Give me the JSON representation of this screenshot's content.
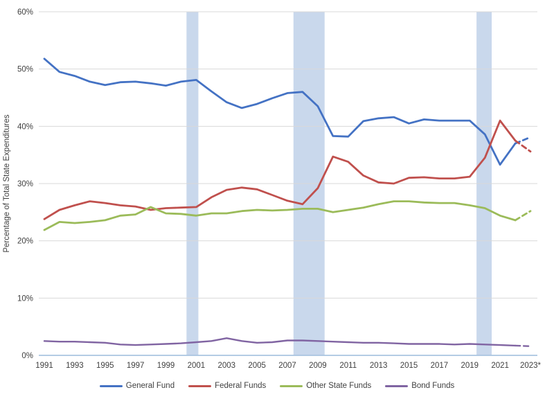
{
  "chart_data": {
    "type": "line",
    "title": "",
    "ylabel": "Percentage of Total State Expenditures",
    "xlabel": "",
    "ylim": [
      0,
      60
    ],
    "ytick_step": 10,
    "ytick_labels": [
      "0%",
      "10%",
      "20%",
      "30%",
      "40%",
      "50%",
      "60%"
    ],
    "x": [
      1991,
      1992,
      1993,
      1994,
      1995,
      1996,
      1997,
      1998,
      1999,
      2000,
      2001,
      2002,
      2003,
      2004,
      2005,
      2006,
      2007,
      2008,
      2009,
      2010,
      2011,
      2012,
      2013,
      2014,
      2015,
      2016,
      2017,
      2018,
      2019,
      2020,
      2021,
      2022,
      2023
    ],
    "xtick_labels": [
      "1991",
      "1993",
      "1995",
      "1997",
      "1999",
      "2001",
      "2003",
      "2005",
      "2007",
      "2009",
      "2011",
      "2013",
      "2015",
      "2017",
      "2019",
      "2021",
      "2023*"
    ],
    "grid": true,
    "legend_position": "bottom",
    "last_segment_dashed": true,
    "series": [
      {
        "name": "General Fund",
        "color": "#4472C4",
        "values": [
          51.8,
          49.5,
          48.8,
          47.8,
          47.2,
          47.7,
          47.8,
          47.5,
          47.1,
          47.8,
          48.1,
          46.1,
          44.2,
          43.2,
          43.9,
          44.9,
          45.8,
          46.0,
          43.5,
          38.3,
          38.2,
          40.9,
          41.4,
          41.6,
          40.5,
          41.2,
          41.0,
          41.0,
          41.0,
          38.6,
          33.3,
          37.0,
          38.1
        ]
      },
      {
        "name": "Federal Funds",
        "color": "#C0504D",
        "values": [
          23.8,
          25.4,
          26.2,
          26.9,
          26.6,
          26.2,
          26.0,
          25.4,
          25.7,
          25.8,
          25.9,
          27.6,
          28.9,
          29.3,
          29.0,
          28.0,
          27.0,
          26.4,
          29.2,
          34.7,
          33.8,
          31.4,
          30.2,
          30.0,
          31.0,
          31.1,
          30.9,
          30.9,
          31.2,
          34.5,
          41.0,
          37.5,
          35.6
        ]
      },
      {
        "name": "Other State Funds",
        "color": "#9BBB59",
        "values": [
          21.9,
          23.3,
          23.1,
          23.3,
          23.6,
          24.4,
          24.6,
          25.9,
          24.8,
          24.7,
          24.4,
          24.8,
          24.8,
          25.2,
          25.4,
          25.3,
          25.4,
          25.6,
          25.6,
          25.0,
          25.4,
          25.8,
          26.4,
          26.9,
          26.9,
          26.7,
          26.6,
          26.6,
          26.2,
          25.7,
          24.4,
          23.6,
          25.2
        ]
      },
      {
        "name": "Bond Funds",
        "color": "#8064A2",
        "values": [
          2.5,
          2.4,
          2.4,
          2.3,
          2.2,
          1.9,
          1.8,
          1.9,
          2.0,
          2.1,
          2.3,
          2.5,
          3.0,
          2.5,
          2.2,
          2.3,
          2.6,
          2.6,
          2.5,
          2.4,
          2.3,
          2.2,
          2.2,
          2.1,
          2.0,
          2.0,
          2.0,
          1.9,
          2.0,
          1.9,
          1.8,
          1.7,
          1.6
        ]
      }
    ],
    "recession_bands": [
      [
        2000.36,
        2001.14
      ],
      [
        2007.4,
        2009.45
      ],
      [
        2019.45,
        2020.45
      ]
    ],
    "colors": {
      "band": "#C9D8EC",
      "gridline": "#D9D9D9",
      "x_axis_line": "#A9C4E0",
      "tick_text": "#3F3F3F"
    }
  }
}
